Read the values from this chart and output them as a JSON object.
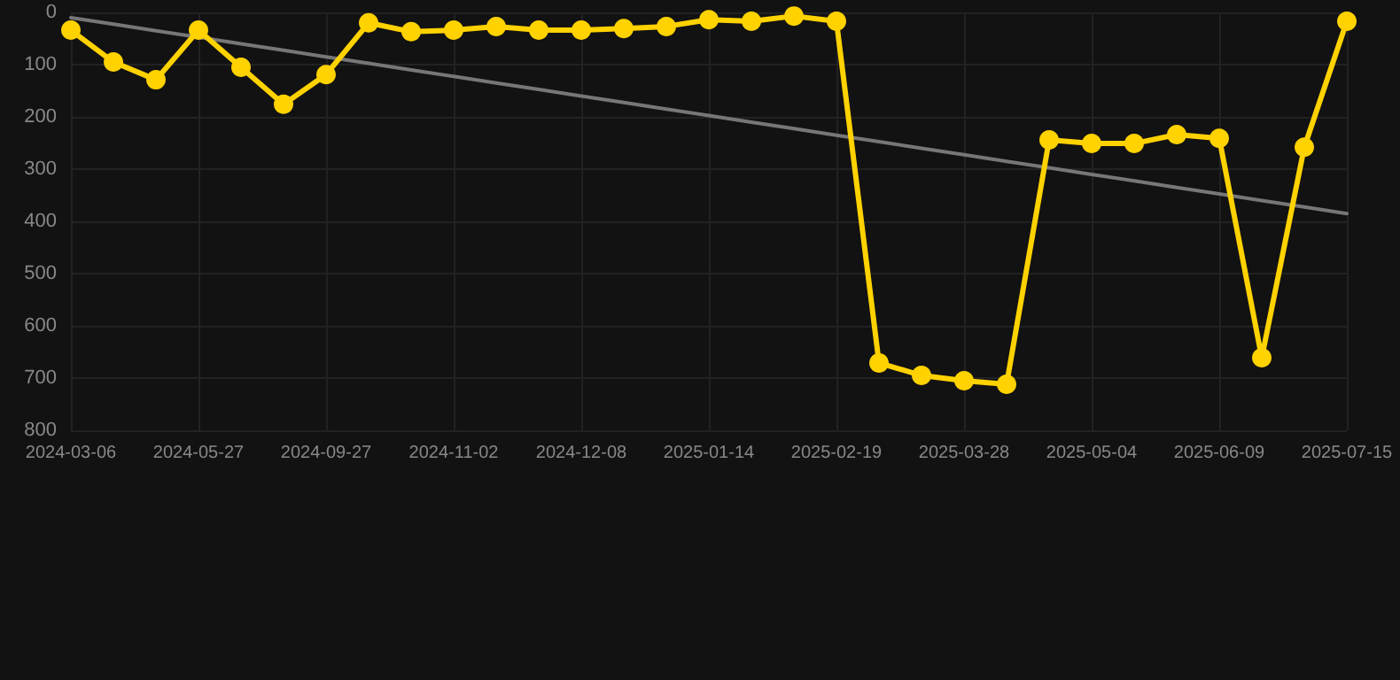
{
  "chart_data": {
    "type": "line",
    "categories": [
      "2024-03-06",
      null,
      null,
      "2024-05-27",
      null,
      null,
      "2024-09-27",
      null,
      null,
      "2024-11-02",
      null,
      null,
      "2024-12-08",
      null,
      null,
      "2025-01-14",
      null,
      null,
      "2025-02-19",
      null,
      null,
      "2025-03-28",
      null,
      null,
      "2025-05-04",
      null,
      null,
      "2025-06-09",
      null,
      null,
      "2025-07-15"
    ],
    "series": [
      {
        "color": "#ffd200",
        "values": [
          34,
          95,
          129,
          34,
          105,
          176,
          119,
          20,
          37,
          34,
          27,
          34,
          34,
          31,
          27,
          14,
          17,
          7,
          17,
          671,
          695,
          705,
          712,
          244,
          251,
          251,
          234,
          241,
          661,
          258,
          17
        ]
      },
      {
        "type": "line",
        "color": "#777777",
        "marker": "none",
        "values": [
          10,
          22.5,
          35,
          47.5,
          60,
          72.5,
          85,
          97.5,
          110,
          122.5,
          135,
          147.5,
          160,
          172.5,
          185,
          197.5,
          210,
          222.5,
          235,
          247.5,
          260,
          272.5,
          285,
          297.5,
          310,
          322.5,
          335,
          347.5,
          360,
          372.5,
          385
        ]
      }
    ],
    "ylim": [
      800,
      0
    ],
    "yticks": [
      0,
      100,
      200,
      300,
      400,
      500,
      600,
      700,
      800
    ],
    "grid": true,
    "marker": "circle",
    "line_style": "solid"
  }
}
